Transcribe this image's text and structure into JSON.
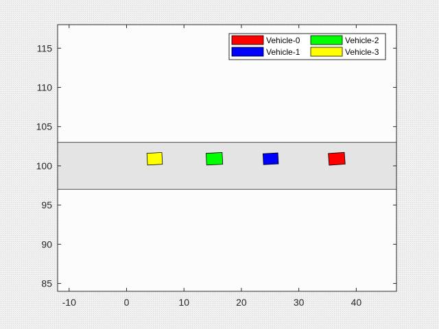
{
  "chart_data": {
    "type": "scatter",
    "title": "",
    "xlabel": "",
    "ylabel": "",
    "xlim": [
      -12,
      47
    ],
    "ylim": [
      84,
      118
    ],
    "x_ticks": [
      -10,
      0,
      10,
      20,
      30,
      40
    ],
    "x_tick_labels": [
      "-10",
      "0",
      "10",
      "20",
      "30",
      "40"
    ],
    "y_ticks": [
      85,
      90,
      95,
      100,
      105,
      110,
      115
    ],
    "y_tick_labels": [
      "85",
      "90",
      "95",
      "100",
      "105",
      "110",
      "115"
    ],
    "grid": false,
    "legend": {
      "location": "top-right",
      "columns": 2
    },
    "road": {
      "y_min": 97,
      "y_max": 103,
      "color": "#e4e4e4"
    },
    "series": [
      {
        "name": "Vehicle-0",
        "color": "#ff0000",
        "x": 36.6,
        "y": 100.9,
        "length": 2.8,
        "width": 1.5,
        "heading_deg": 4
      },
      {
        "name": "Vehicle-1",
        "color": "#0000ff",
        "x": 25.1,
        "y": 100.9,
        "length": 2.6,
        "width": 1.4,
        "heading_deg": 3
      },
      {
        "name": "Vehicle-2",
        "color": "#00ff00",
        "x": 15.3,
        "y": 100.9,
        "length": 2.8,
        "width": 1.5,
        "heading_deg": 3
      },
      {
        "name": "Vehicle-3",
        "color": "#ffff00",
        "x": 4.9,
        "y": 100.9,
        "length": 2.6,
        "width": 1.5,
        "heading_deg": 3
      }
    ]
  }
}
